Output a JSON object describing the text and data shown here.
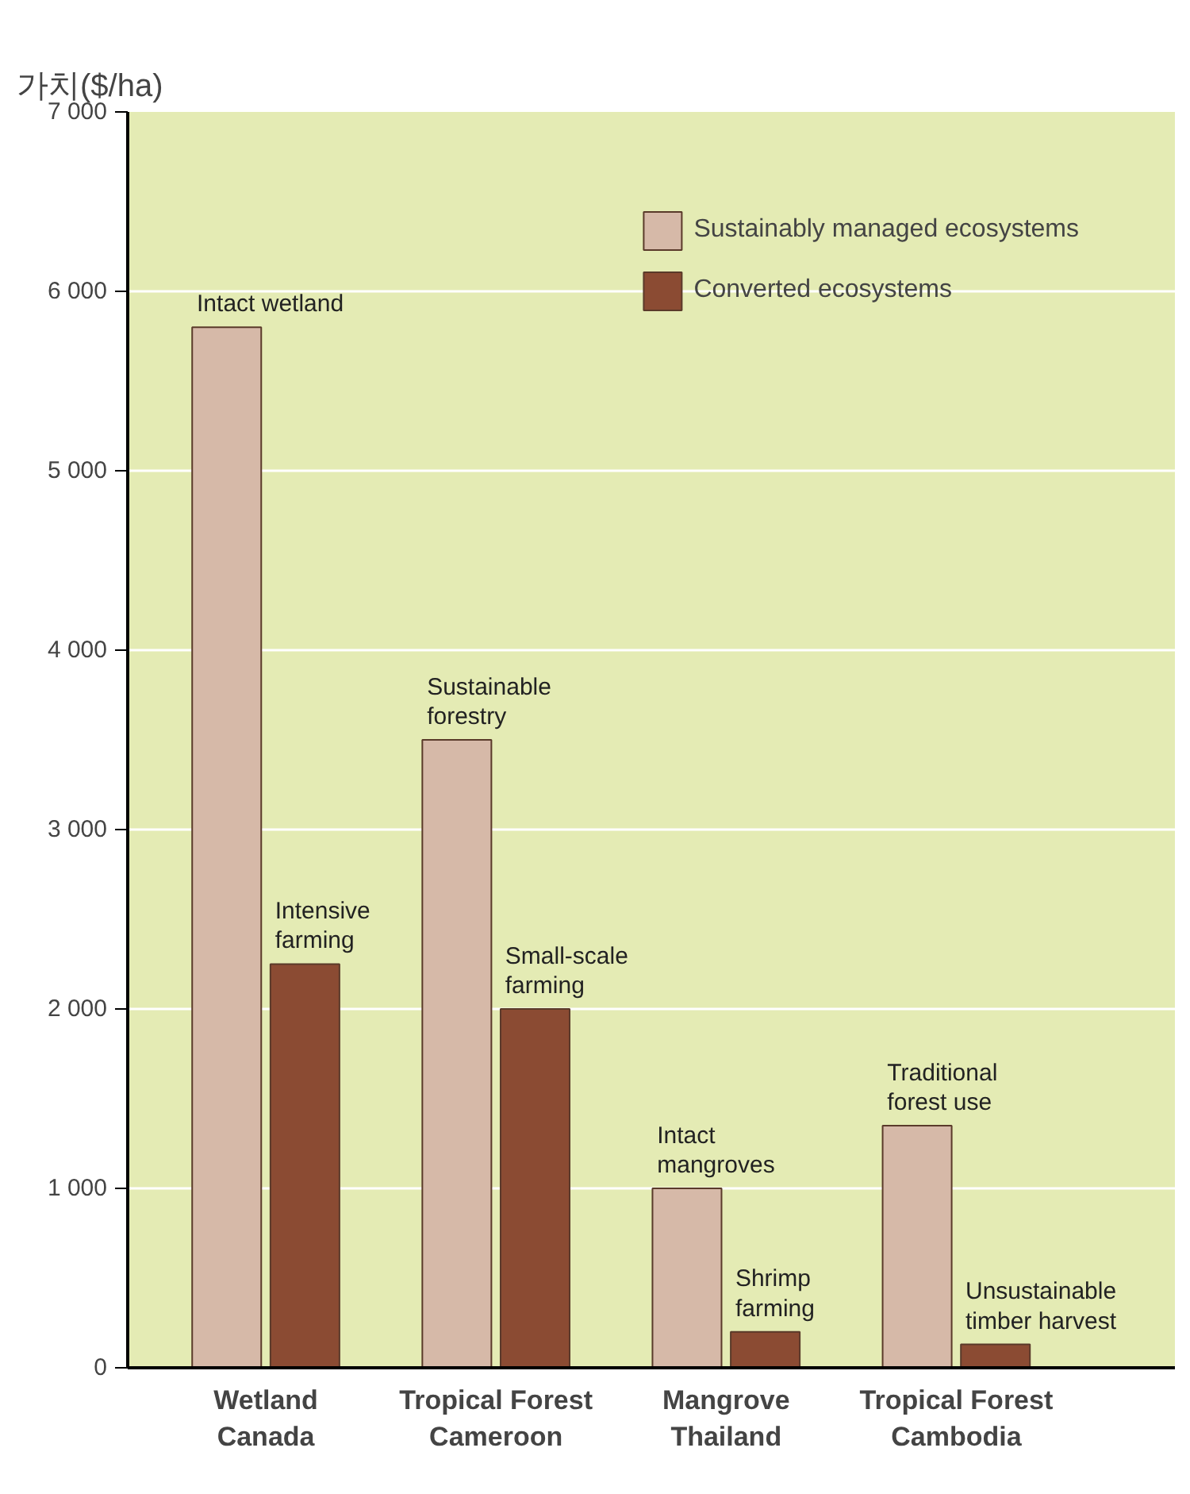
{
  "chart_data": {
    "type": "bar",
    "ylabel": "가치($/ha)",
    "categories": [
      "Wetland\nCanada",
      "Tropical Forest\nCameroon",
      "Mangrove\nThailand",
      "Tropical Forest\nCambodia"
    ],
    "series": [
      {
        "name": "Sustainably managed ecosystems",
        "color": "#d6b9a8",
        "values": [
          5800,
          3500,
          1000,
          1350
        ]
      },
      {
        "name": "Converted ecosystems",
        "color": "#8b4b33",
        "values": [
          2250,
          2000,
          200,
          130
        ]
      }
    ],
    "ylim": [
      0,
      7000
    ],
    "yticks": [
      0,
      {
        "value": 1000,
        "label": "1 000"
      },
      {
        "value": 2000,
        "label": "2 000"
      },
      {
        "value": 3000,
        "label": "3 000"
      },
      {
        "value": 4000,
        "label": "4 000"
      },
      {
        "value": 5000,
        "label": "5 000"
      },
      {
        "value": 6000,
        "label": "6 000"
      },
      {
        "value": 7000,
        "label": "7 000"
      }
    ],
    "grid": "y",
    "legend": "top right",
    "annotations": [
      {
        "text": "Intact wetland",
        "x": "Wetland\nCanada",
        "y": 5800
      },
      {
        "text": "Intensive\nfarming",
        "x": "Wetland\nCanada",
        "y": 2250
      },
      {
        "text": "Sustainable\nforestry",
        "x": "Tropical Forest\nCameroon",
        "y": 3500
      },
      {
        "text": "Small-scale\nfarming",
        "x": "Tropical Forest\nCameroon",
        "y": 2000
      },
      {
        "text": "Intact\nmangroves",
        "x": "Mangrove\nThailand",
        "y": 1000
      },
      {
        "text": "Shrimp\nfarming",
        "x": "Mangrove\nThailand",
        "y": 200
      },
      {
        "text": "Traditional\nforest use",
        "x": "Tropical Forest\nCambodia",
        "y": 1350
      },
      {
        "text": "Unsustainable\ntimber harvest",
        "x": "Tropical Forest\nCambodia",
        "y": 130
      }
    ]
  }
}
